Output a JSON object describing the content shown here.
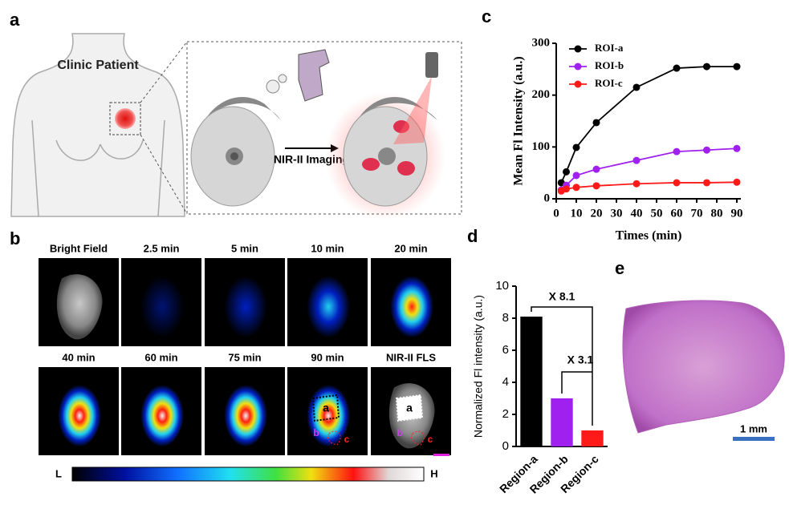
{
  "panels": {
    "a": {
      "label": "a",
      "patient_label": "Clinic Patient",
      "arrow_label": "NIR-II Imaging"
    },
    "b": {
      "label": "b",
      "images": [
        "Bright Field",
        "2.5 min",
        "5 min",
        "10 min",
        "20 min",
        "40 min",
        "60 min",
        "75 min",
        "90 min",
        "NIR-II FLS"
      ],
      "region_labels": [
        "a",
        "b",
        "c"
      ],
      "colorbar": {
        "low": "L",
        "high": "H"
      }
    },
    "c": {
      "label": "c"
    },
    "d": {
      "label": "d"
    },
    "e": {
      "label": "e",
      "scale_bar": "1 mm"
    }
  },
  "chart_data": [
    {
      "type": "line",
      "x_label": "Times (min)",
      "y_label": "Mean Fl Intensity (a.u.)",
      "x": [
        2.5,
        5,
        10,
        20,
        40,
        60,
        75,
        90
      ],
      "series": [
        {
          "name": "ROI-a",
          "color": "#000000",
          "values": [
            31,
            52,
            99,
            147,
            215,
            252,
            255,
            255
          ]
        },
        {
          "name": "ROI-b",
          "color": "#a020f0",
          "values": [
            17,
            26,
            45,
            57,
            74,
            91,
            94,
            97
          ]
        },
        {
          "name": "ROI-c",
          "color": "#ff1a1a",
          "values": [
            15,
            19,
            22,
            25,
            29,
            31,
            31,
            32
          ]
        }
      ],
      "xlim": [
        0,
        92
      ],
      "xticks": [
        0,
        10,
        20,
        30,
        40,
        50,
        60,
        70,
        80,
        90
      ],
      "ylim": [
        0,
        300
      ],
      "yticks": [
        0,
        100,
        200,
        300
      ],
      "legend": "upper left"
    },
    {
      "type": "bar",
      "y_label": "Normalized Fl intensity (a.u.)",
      "categories": [
        "Region-a",
        "Region-b",
        "Region-c"
      ],
      "values": [
        8.1,
        3.0,
        1.0
      ],
      "colors": [
        "#000000",
        "#a020f0",
        "#ff1a1a"
      ],
      "ylim": [
        0,
        10
      ],
      "yticks": [
        0,
        2,
        4,
        6,
        8,
        10
      ],
      "annotations": [
        "X 8.1",
        "X 3.1"
      ]
    }
  ]
}
